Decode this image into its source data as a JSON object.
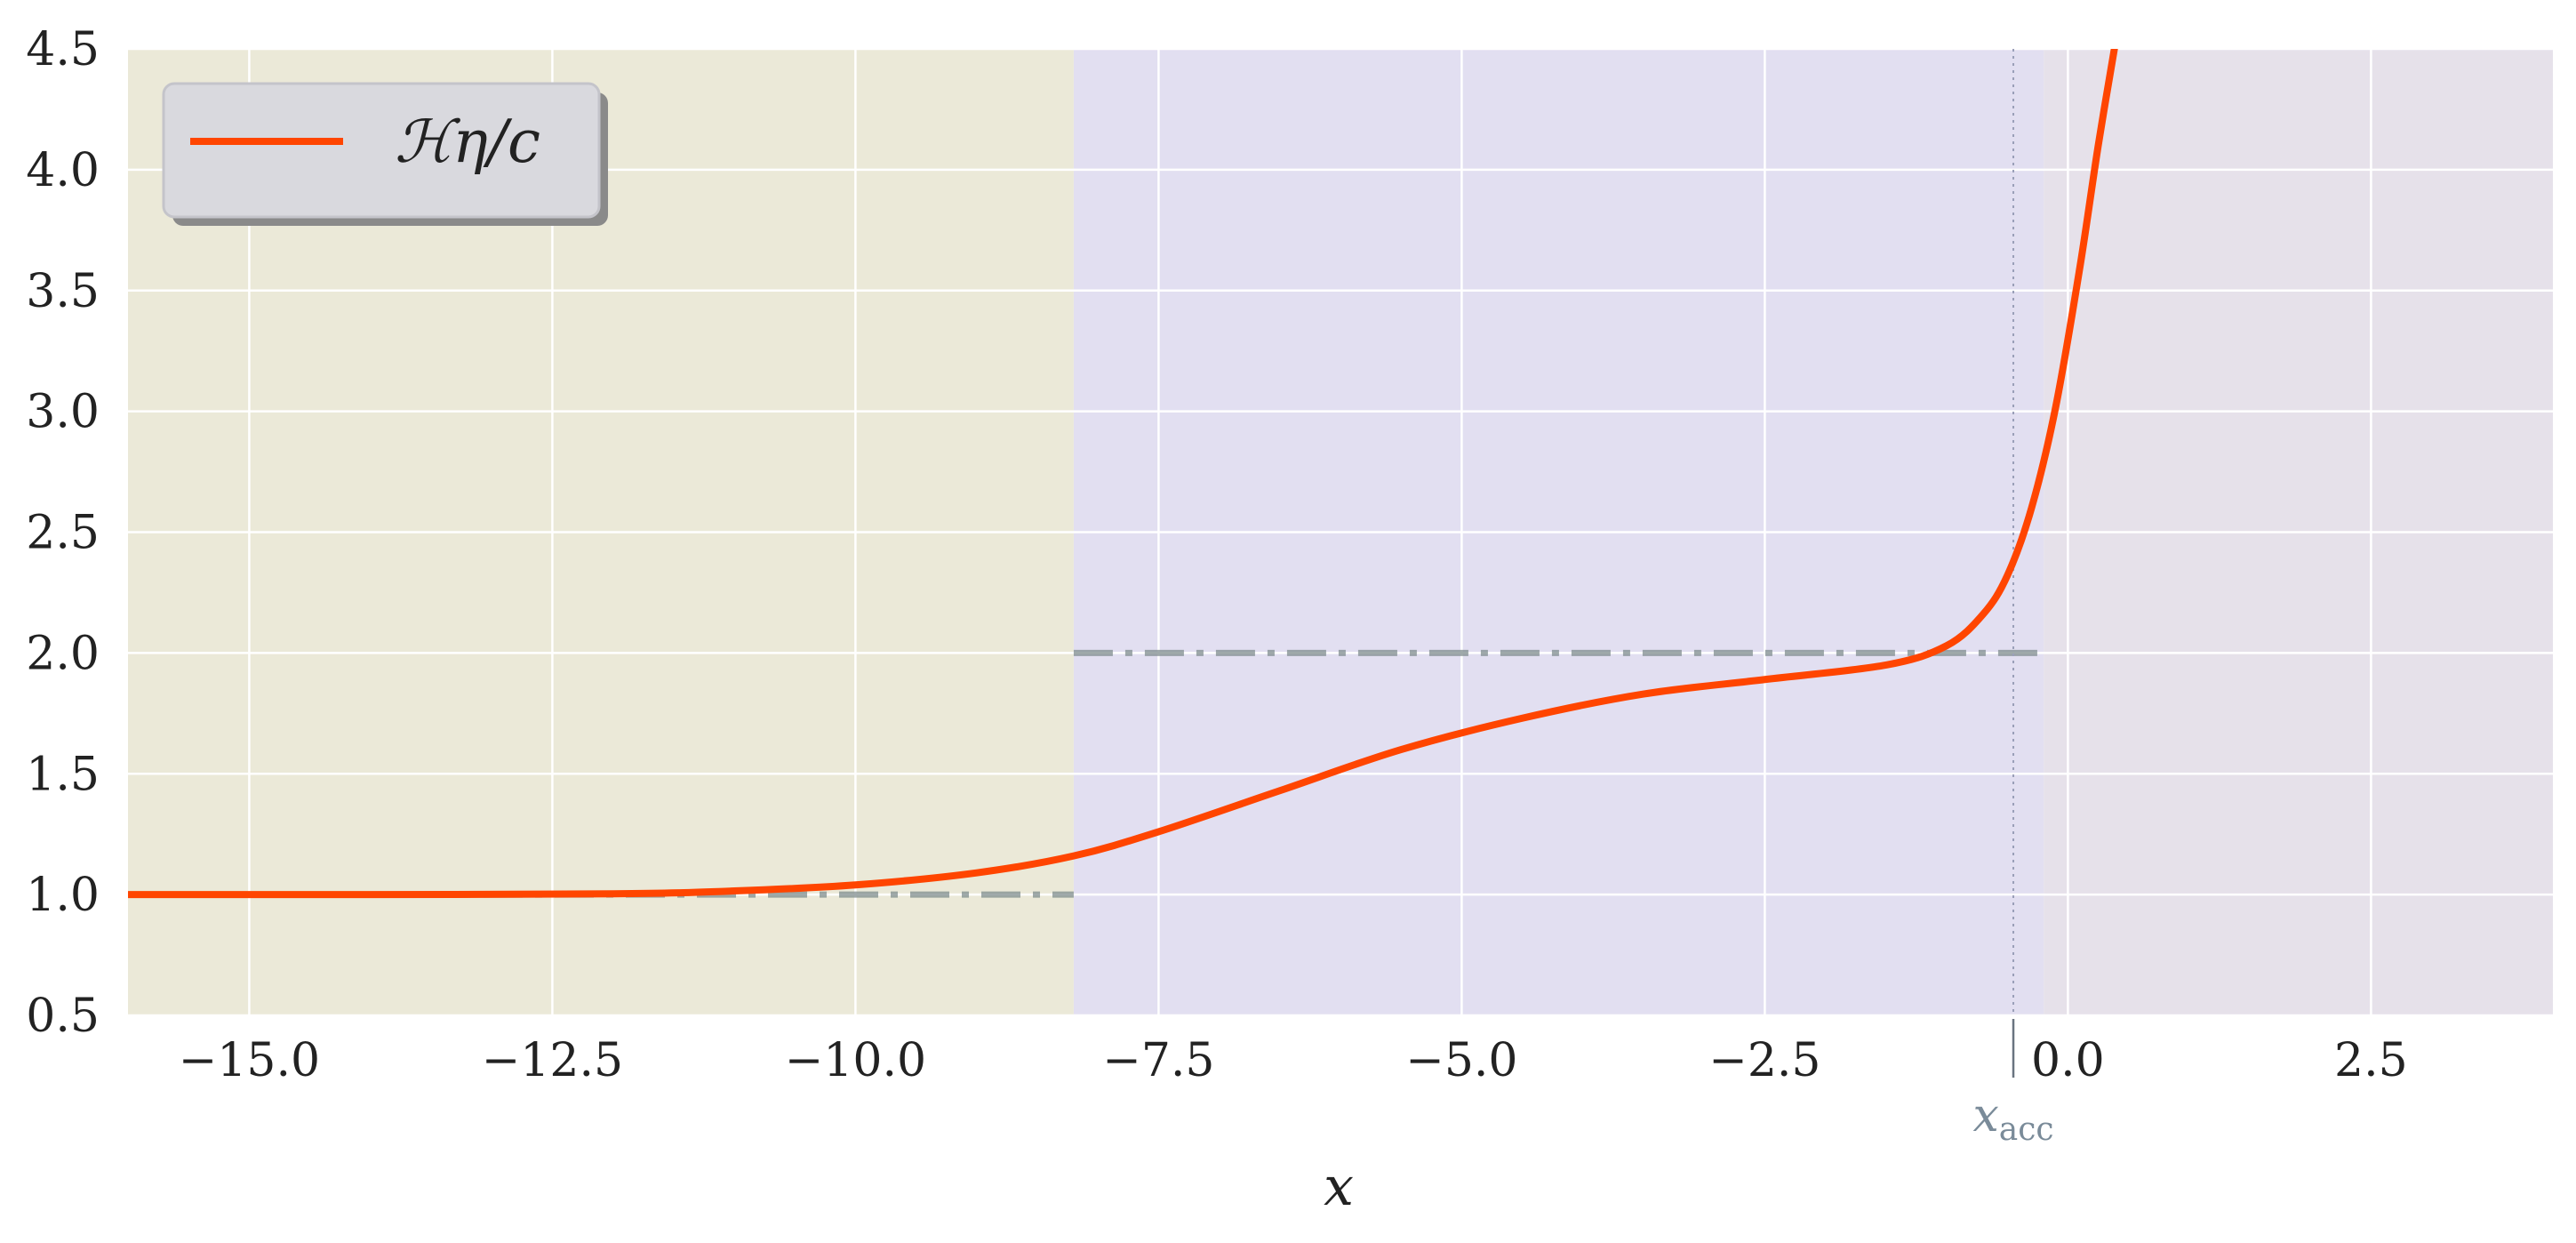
{
  "chart_data": {
    "type": "line",
    "xlabel": "x",
    "ylabel": "",
    "xlim": [
      -16.0,
      4.0
    ],
    "ylim": [
      0.5,
      4.5
    ],
    "x_ticks": [
      -15.0,
      -12.5,
      -10.0,
      -7.5,
      -5.0,
      -2.5,
      0.0,
      2.5
    ],
    "x_tick_labels": [
      "−15.0",
      "−12.5",
      "−10.0",
      "−7.5",
      "−5.0",
      "−2.5",
      "0.0",
      "2.5"
    ],
    "y_ticks": [
      0.5,
      1.0,
      1.5,
      2.0,
      2.5,
      3.0,
      3.5,
      4.0,
      4.5
    ],
    "y_tick_labels": [
      "0.5",
      "1.0",
      "1.5",
      "2.0",
      "2.5",
      "3.0",
      "3.5",
      "4.0",
      "4.5"
    ],
    "grid": true,
    "legend_position": "top-left",
    "series": [
      {
        "name": "ℋη/c",
        "color": "#ff4500",
        "x": [
          -16.0,
          -14.0,
          -12.0,
          -11.0,
          -10.0,
          -9.0,
          -8.2,
          -7.5,
          -6.5,
          -5.5,
          -4.5,
          -3.5,
          -2.5,
          -1.5,
          -1.0,
          -0.7,
          -0.5,
          -0.3,
          -0.1,
          0.1,
          0.25,
          0.4
        ],
        "y": [
          1.0,
          1.0,
          1.003,
          1.015,
          1.04,
          1.09,
          1.16,
          1.26,
          1.43,
          1.6,
          1.73,
          1.83,
          1.89,
          1.95,
          2.03,
          2.16,
          2.32,
          2.6,
          3.02,
          3.6,
          4.1,
          4.55
        ]
      }
    ],
    "reference_lines": [
      {
        "y": 1.0,
        "x_range": [
          -16.0,
          -8.2
        ],
        "style": "dash-dot",
        "color": "#7f8c8d"
      },
      {
        "y": 2.0,
        "x_range": [
          -8.2,
          -0.2
        ],
        "style": "dash-dot",
        "color": "#7f8c8d"
      }
    ],
    "shaded_regions": [
      {
        "x_range": [
          -16.0,
          -8.2
        ],
        "color": "#ebe9d8"
      },
      {
        "x_range": [
          -8.2,
          -0.2
        ],
        "color": "#e2dff1"
      },
      {
        "x_range": [
          -0.2,
          4.0
        ],
        "color": "#e6e1ea"
      }
    ],
    "annotations": [
      {
        "label": "x_acc",
        "x": -0.45,
        "text_main": "x",
        "text_sub": "acc",
        "style": "dotted vertical line",
        "color": "#7a8b99"
      }
    ]
  }
}
